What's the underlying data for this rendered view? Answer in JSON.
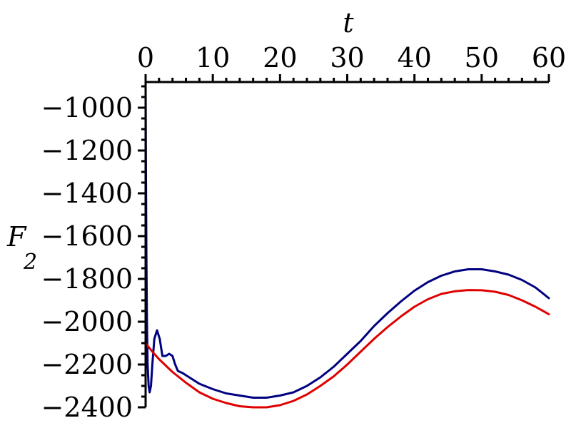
{
  "chart_data": {
    "type": "line",
    "xlabel": "t",
    "ylabel": "F",
    "ylabel_sub": "2",
    "x_ticks": [
      0,
      10,
      20,
      30,
      40,
      50,
      60
    ],
    "y_ticks": [
      -1000,
      -1200,
      -1400,
      -1600,
      -1800,
      -2000,
      -2200,
      -2400
    ],
    "xlim": [
      0,
      60
    ],
    "ylim": [
      -2400,
      -880
    ],
    "x_axis_position": "top",
    "grid": false,
    "legend": "none",
    "series": [
      {
        "color": "#000080",
        "points": [
          [
            0.0,
            -880
          ],
          [
            0.05,
            -1300
          ],
          [
            0.12,
            -1700
          ],
          [
            0.2,
            -2000
          ],
          [
            0.3,
            -2200
          ],
          [
            0.45,
            -2300
          ],
          [
            0.6,
            -2330
          ],
          [
            0.8,
            -2300
          ],
          [
            1.0,
            -2200
          ],
          [
            1.3,
            -2080
          ],
          [
            1.7,
            -2040
          ],
          [
            2.1,
            -2080
          ],
          [
            2.5,
            -2160
          ],
          [
            3.0,
            -2160
          ],
          [
            3.5,
            -2150
          ],
          [
            4.0,
            -2160
          ],
          [
            4.4,
            -2200
          ],
          [
            4.8,
            -2230
          ],
          [
            5.5,
            -2240
          ],
          [
            6.5,
            -2260
          ],
          [
            8,
            -2290
          ],
          [
            10,
            -2315
          ],
          [
            12,
            -2335
          ],
          [
            14,
            -2345
          ],
          [
            16,
            -2355
          ],
          [
            18,
            -2355
          ],
          [
            20,
            -2345
          ],
          [
            22,
            -2330
          ],
          [
            24,
            -2300
          ],
          [
            26,
            -2260
          ],
          [
            28,
            -2210
          ],
          [
            30,
            -2150
          ],
          [
            32,
            -2090
          ],
          [
            34,
            -2020
          ],
          [
            36,
            -1960
          ],
          [
            38,
            -1905
          ],
          [
            40,
            -1855
          ],
          [
            42,
            -1815
          ],
          [
            44,
            -1785
          ],
          [
            46,
            -1765
          ],
          [
            48,
            -1755
          ],
          [
            50,
            -1755
          ],
          [
            52,
            -1765
          ],
          [
            54,
            -1780
          ],
          [
            56,
            -1805
          ],
          [
            58,
            -1840
          ],
          [
            60,
            -1890
          ]
        ]
      },
      {
        "color": "#e00000",
        "points": [
          [
            0.0,
            -2100
          ],
          [
            1,
            -2140
          ],
          [
            2,
            -2175
          ],
          [
            4,
            -2235
          ],
          [
            6,
            -2285
          ],
          [
            8,
            -2330
          ],
          [
            10,
            -2360
          ],
          [
            12,
            -2380
          ],
          [
            14,
            -2395
          ],
          [
            16,
            -2400
          ],
          [
            18,
            -2400
          ],
          [
            20,
            -2390
          ],
          [
            22,
            -2370
          ],
          [
            24,
            -2340
          ],
          [
            26,
            -2300
          ],
          [
            28,
            -2255
          ],
          [
            30,
            -2200
          ],
          [
            32,
            -2140
          ],
          [
            34,
            -2080
          ],
          [
            36,
            -2025
          ],
          [
            38,
            -1975
          ],
          [
            40,
            -1930
          ],
          [
            42,
            -1895
          ],
          [
            44,
            -1870
          ],
          [
            46,
            -1858
          ],
          [
            48,
            -1852
          ],
          [
            50,
            -1853
          ],
          [
            52,
            -1860
          ],
          [
            54,
            -1875
          ],
          [
            56,
            -1900
          ],
          [
            58,
            -1930
          ],
          [
            60,
            -1965
          ]
        ]
      }
    ]
  }
}
